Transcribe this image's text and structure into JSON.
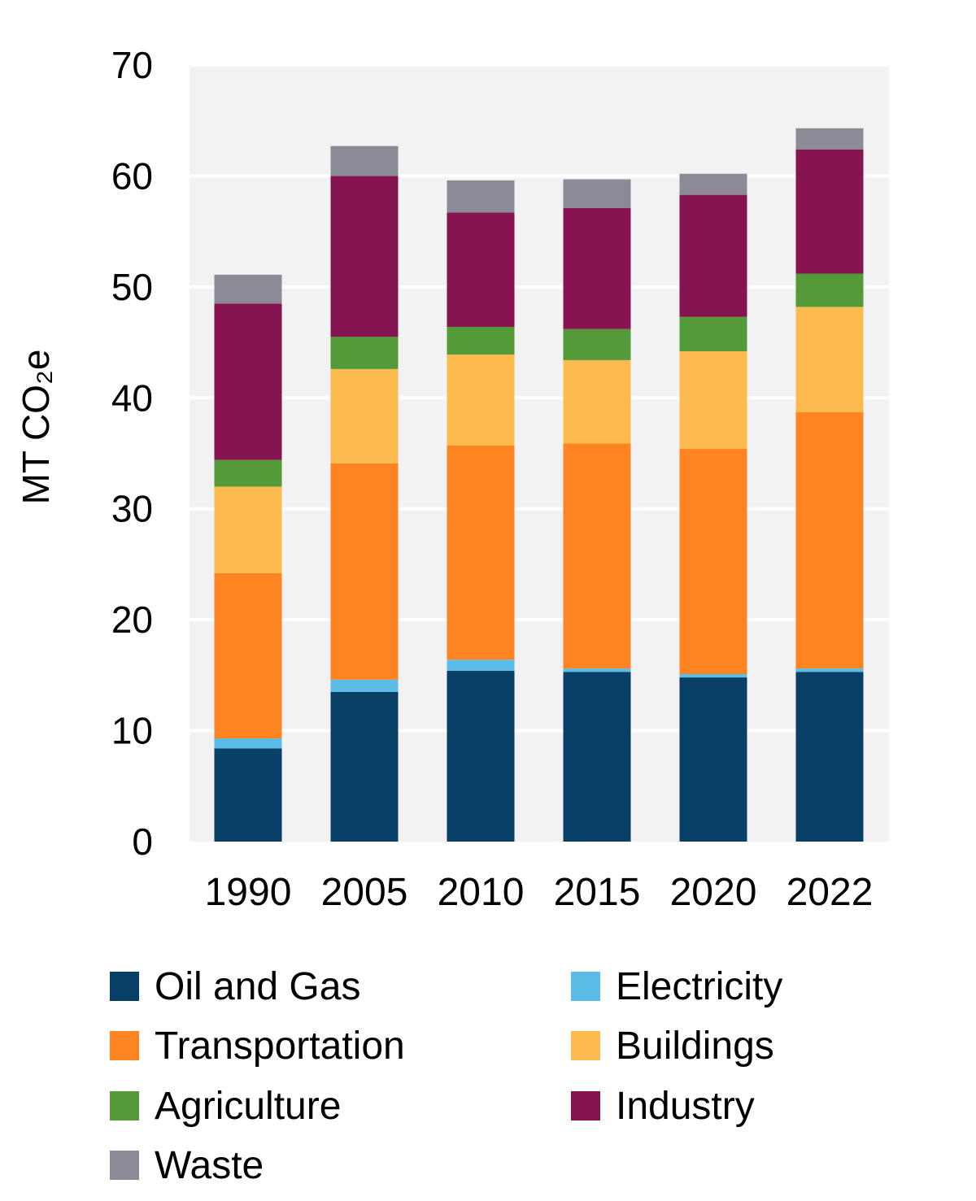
{
  "chart_data": {
    "type": "bar",
    "stacked": true,
    "title": "",
    "xlabel": "",
    "ylabel": "MT CO₂e",
    "ylim": [
      0,
      70
    ],
    "yticks": [
      0,
      10,
      20,
      30,
      40,
      50,
      60,
      70
    ],
    "grid": true,
    "legend_placement": "bottom",
    "categories": [
      "1990",
      "2005",
      "2010",
      "2015",
      "2020",
      "2022"
    ],
    "series": [
      {
        "name": "Oil and Gas",
        "color": "#083f66",
        "values": [
          8.4,
          13.5,
          15.4,
          15.3,
          14.8,
          15.3
        ]
      },
      {
        "name": "Electricity",
        "color": "#5bbde6",
        "values": [
          0.9,
          1.1,
          1.0,
          0.3,
          0.3,
          0.3
        ]
      },
      {
        "name": "Transportation",
        "color": "#fd8421",
        "values": [
          14.9,
          19.5,
          19.3,
          20.3,
          20.3,
          23.1
        ]
      },
      {
        "name": "Buildings",
        "color": "#fdbb4f",
        "values": [
          7.8,
          8.5,
          8.2,
          7.5,
          8.8,
          9.5
        ]
      },
      {
        "name": "Agriculture",
        "color": "#559a38",
        "values": [
          2.4,
          2.9,
          2.5,
          2.8,
          3.1,
          3.0
        ]
      },
      {
        "name": "Industry",
        "color": "#861451",
        "values": [
          14.1,
          14.5,
          10.3,
          10.9,
          11.0,
          11.2
        ]
      },
      {
        "name": "Waste",
        "color": "#8b8a96",
        "values": [
          2.6,
          2.7,
          2.9,
          2.6,
          1.9,
          1.9
        ]
      }
    ],
    "colors": {
      "plot_background": "#f2f2f2",
      "gridline": "#ffffff"
    }
  }
}
